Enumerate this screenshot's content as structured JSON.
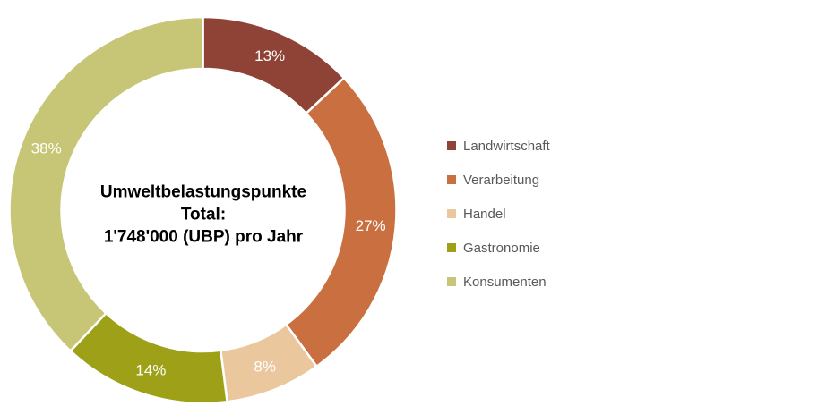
{
  "chart_data": {
    "type": "pie",
    "subtype": "donut",
    "unit": "%",
    "start_angle_deg": 0,
    "direction": "clockwise",
    "legend_position": "right",
    "grid": false,
    "center_label": {
      "line1": "Umweltbelastungspunkte",
      "line2": "Total:",
      "line3": "1'748'000 (UBP) pro Jahr"
    },
    "series": [
      {
        "name": "Landwirtschaft",
        "value": 13,
        "data_label": "13%",
        "color": "#8F4236"
      },
      {
        "name": "Verarbeitung",
        "value": 27,
        "data_label": "27%",
        "color": "#C96F40"
      },
      {
        "name": "Handel",
        "value": 8,
        "data_label": "8%",
        "color": "#EBC79D"
      },
      {
        "name": "Gastronomie",
        "value": 14,
        "data_label": "14%",
        "color": "#9EA118"
      },
      {
        "name": "Konsumenten",
        "value": 38,
        "data_label": "38%",
        "color": "#C6C676"
      }
    ],
    "style": {
      "label_color": "#ffffff",
      "legend_text_color": "#595959",
      "segment_border_color": "#ffffff",
      "background": "#ffffff"
    }
  }
}
